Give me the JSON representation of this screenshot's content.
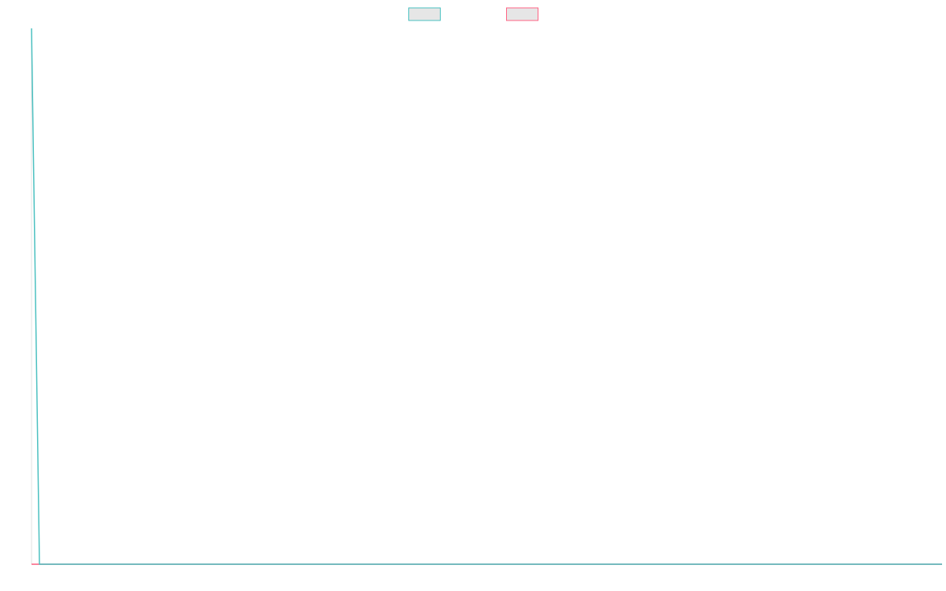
{
  "chart_data": {
    "type": "line",
    "x": [
      0,
      1,
      2,
      3,
      4,
      5,
      6,
      7,
      8,
      9,
      10,
      11,
      12,
      13,
      14,
      15,
      16,
      17,
      18,
      19,
      20,
      21,
      22,
      23,
      24,
      25,
      26,
      27,
      28,
      29,
      30,
      31,
      32,
      33,
      34,
      35,
      36,
      37,
      38,
      39,
      40,
      41,
      42,
      43,
      44,
      45,
      46,
      47,
      48,
      49,
      50,
      51,
      52,
      53,
      54,
      55,
      56,
      57,
      58,
      59,
      60,
      61,
      62,
      63,
      64,
      65,
      66,
      67,
      68,
      69,
      70,
      71,
      72,
      73,
      74,
      75,
      76,
      77,
      78,
      79,
      80,
      81,
      82,
      83,
      84,
      85,
      86,
      87,
      88,
      89,
      90,
      91,
      92,
      93,
      94,
      95,
      96,
      97,
      98,
      99,
      100,
      101,
      102,
      103,
      104,
      105,
      106,
      107,
      108,
      109,
      110,
      111,
      112,
      113,
      114,
      115
    ],
    "series": [
      {
        "name": "",
        "color": "#4bc0c0",
        "fill": "#e6e6e6",
        "values": [
          100,
          0,
          0,
          0,
          0,
          0,
          0,
          0,
          0,
          0,
          0,
          0,
          0,
          0,
          0,
          0,
          0,
          0,
          0,
          0,
          0,
          0,
          0,
          0,
          0,
          0,
          0,
          0,
          0,
          0,
          0,
          0,
          0,
          0,
          0,
          0,
          0,
          0,
          0,
          0,
          0,
          0,
          0,
          0,
          0,
          0,
          0,
          0,
          0,
          0,
          0,
          0,
          0,
          0,
          0,
          0,
          0,
          0,
          0,
          0,
          0,
          0,
          0,
          0,
          0,
          0,
          0,
          0,
          0,
          0,
          0,
          0,
          0,
          0,
          0,
          0,
          0,
          0,
          0,
          0,
          0,
          0,
          0,
          0,
          0,
          0,
          0,
          0,
          0,
          0,
          0,
          0,
          0,
          0,
          0,
          0,
          0,
          0,
          0,
          0,
          0,
          0,
          0,
          0,
          0,
          0,
          0,
          0,
          0,
          0,
          0,
          0,
          0,
          0,
          0,
          0
        ]
      },
      {
        "name": "",
        "color": "#ff6384",
        "fill": "#e6e6e6",
        "values": [
          0,
          0,
          0,
          0,
          0,
          0,
          0,
          0,
          0,
          0,
          0,
          0,
          0,
          0,
          0,
          0,
          0,
          0,
          0,
          0,
          0,
          0,
          0,
          0,
          0,
          0,
          0,
          0,
          0,
          0,
          0,
          0,
          0,
          0,
          0,
          0,
          0,
          0,
          0,
          0,
          0,
          0,
          0,
          0,
          0,
          0,
          0,
          0,
          0,
          0,
          0,
          0,
          0,
          0,
          0,
          0,
          0,
          0,
          0,
          0,
          0,
          0,
          0,
          0,
          0,
          0,
          0,
          0,
          0,
          0,
          0,
          0,
          0,
          0,
          0,
          0,
          0,
          0,
          0,
          0,
          0,
          0,
          0,
          0,
          0,
          0,
          0,
          0,
          0,
          0,
          0,
          0,
          0,
          0,
          0,
          0,
          0,
          0,
          0,
          0,
          0,
          0,
          0,
          0,
          0,
          0,
          0,
          0,
          0,
          0,
          0,
          0,
          0,
          0,
          0,
          0
        ]
      }
    ],
    "title": "",
    "xlabel": "",
    "ylabel": "",
    "ylim": [
      0,
      100
    ],
    "grid": false,
    "legend_position": "top-center"
  }
}
